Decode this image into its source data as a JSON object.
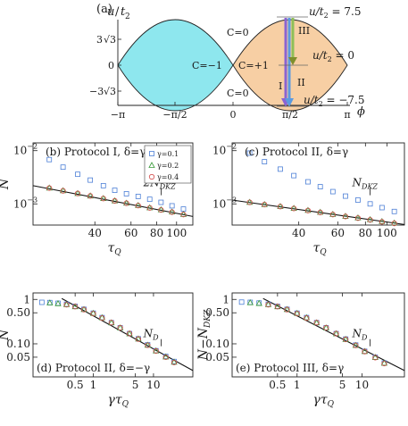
{
  "figure": {
    "panel_a": {
      "label": "(a)",
      "ylabel_u": "u",
      "ylabel_slash": "/",
      "ylabel_t": "t",
      "ylabel_sub": "2",
      "ytick_pos_coef": "3",
      "ytick_pos_root": "3",
      "ytick_zero": "0",
      "ytick_neg_prefix": "−3",
      "ytick_neg_root": "3",
      "xticks": [
        "−π",
        "−π/2",
        "0",
        "π/2",
        "π"
      ],
      "xlabel": "ϕ",
      "region_labels": {
        "top_right": "C=0",
        "left_lobe": "C=−1",
        "right_lobe": "C=+1",
        "bottom_right": "C=0"
      },
      "protocol_labels": {
        "p1": "I",
        "p2": "II",
        "p3": "III"
      },
      "u_levels": {
        "top": {
          "lhs": "u/t",
          "sub": "2",
          "rhs": " = 7.5"
        },
        "mid": {
          "lhs": "u/t",
          "sub": "2",
          "rhs": " = 0"
        },
        "bottom": {
          "lhs": "u/t",
          "sub": "2",
          "rhs": " = −7.5"
        }
      },
      "colors": {
        "left_lobe": "#8ee7ee",
        "right_lobe": "#f7cfa4",
        "arrow_purple": "#8a63d2",
        "arrow_blue": "#5b9ae0",
        "arrow_green": "#8fbf57",
        "arrow_olive": "#7f8f2c"
      }
    },
    "panels": [
      {
        "id": "b",
        "title": "(b) Protocol I, δ=γ",
        "ylabel": "N",
        "xlabel_main": "τ",
        "xlabel_sub": "Q",
        "annotation_main": "2N",
        "annotation_sub": "DKZ",
        "yticks": [
          "10",
          "10"
        ],
        "yticks_exp": [
          "−2",
          "−3"
        ],
        "xticks": [
          "40",
          "60",
          "80",
          "100"
        ],
        "legend": [
          {
            "label": "γ=0.1",
            "marker": "square",
            "color": "#4c7fd6"
          },
          {
            "label": "γ=0.2",
            "marker": "triangle",
            "color": "#3a9a3a"
          },
          {
            "label": "γ=0.4",
            "marker": "circle",
            "color": "#d24a4a"
          }
        ]
      },
      {
        "id": "c",
        "title": "(c) Protocol II, δ=γ",
        "ylabel": "",
        "xlabel_main": "τ",
        "xlabel_sub": "Q",
        "annotation_main": "N",
        "annotation_sub": "DKZ",
        "yticks": [
          "10",
          "10"
        ],
        "yticks_exp": [
          "−2",
          "−3"
        ],
        "xticks": [
          "40",
          "60",
          "80",
          "100"
        ]
      },
      {
        "id": "d",
        "title": "(d) Protocol II, δ=−γ",
        "ylabel": "N",
        "xlabel_main": "γτ",
        "xlabel_sub": "Q",
        "annotation_main": "N",
        "annotation_sub": "D",
        "yticks": [
          "1",
          "0.50",
          "0.10",
          "0.05"
        ],
        "xticks": [
          "0.5",
          "1",
          "5",
          "10"
        ]
      },
      {
        "id": "e",
        "title": "(e) Protocol III, δ=γ",
        "ylabel": "N−N",
        "ylabel_sub": "DKZ",
        "xlabel_main": "γτ",
        "xlabel_sub": "Q",
        "annotation_main": "N",
        "annotation_sub": "D",
        "yticks": [
          "1",
          "0.50",
          "0.10",
          "0.05"
        ],
        "xticks": [
          "0.5",
          "1",
          "5",
          "10"
        ]
      }
    ]
  },
  "chart_data": [
    {
      "type": "scatter",
      "title": "(b) Protocol I, δ=γ",
      "xlabel": "τQ",
      "ylabel": "N",
      "xscale": "log",
      "yscale": "log",
      "xlim": [
        20,
        120
      ],
      "ylim": [
        0.0004,
        0.014
      ],
      "series": [
        {
          "name": "γ=0.1",
          "marker": "square",
          "x": [
            24,
            28,
            33,
            38,
            44,
            50,
            57,
            65,
            74,
            84,
            95,
            108
          ],
          "y": [
            0.0068,
            0.0049,
            0.0036,
            0.0028,
            0.0022,
            0.0018,
            0.00155,
            0.00138,
            0.00122,
            0.00107,
            0.00092,
            0.0008
          ]
        },
        {
          "name": "γ=0.2",
          "marker": "triangle",
          "x": [
            24,
            28,
            33,
            38,
            44,
            50,
            57,
            65,
            74,
            84,
            95,
            108
          ],
          "y": [
            0.002,
            0.00178,
            0.00158,
            0.00142,
            0.00127,
            0.00115,
            0.00104,
            0.00094,
            0.00085,
            0.00078,
            0.00071,
            0.00064
          ]
        },
        {
          "name": "γ=0.4",
          "marker": "circle",
          "x": [
            24,
            28,
            33,
            38,
            44,
            50,
            57,
            65,
            74,
            84,
            95,
            108
          ],
          "y": [
            0.00198,
            0.00176,
            0.00157,
            0.00141,
            0.00126,
            0.00114,
            0.00103,
            0.00093,
            0.00084,
            0.00077,
            0.0007,
            0.00063
          ]
        }
      ],
      "reference_line": {
        "label": "2N_DKZ",
        "x": [
          20,
          120
        ],
        "y": [
          0.0022,
          0.00058
        ]
      }
    },
    {
      "type": "scatter",
      "title": "(c) Protocol II, δ=γ",
      "xlabel": "τQ",
      "ylabel": "",
      "xscale": "log",
      "yscale": "log",
      "xlim": [
        20,
        120
      ],
      "ylim": [
        0.0004,
        0.014
      ],
      "series": [
        {
          "name": "γ=0.1",
          "marker": "square",
          "x": [
            24,
            28,
            33,
            38,
            44,
            50,
            57,
            65,
            74,
            84,
            95,
            108
          ],
          "y": [
            0.009,
            0.0062,
            0.0045,
            0.0034,
            0.0026,
            0.0021,
            0.0017,
            0.0014,
            0.00118,
            0.001,
            0.00085,
            0.00072
          ]
        },
        {
          "name": "γ=0.2",
          "marker": "triangle",
          "x": [
            24,
            28,
            33,
            38,
            44,
            50,
            57,
            65,
            74,
            84,
            95,
            108
          ],
          "y": [
            0.00108,
            0.00098,
            0.0009,
            0.00083,
            0.00076,
            0.0007,
            0.00064,
            0.00059,
            0.00055,
            0.00051,
            0.00047,
            0.00044
          ]
        },
        {
          "name": "γ=0.4",
          "marker": "circle",
          "x": [
            24,
            28,
            33,
            38,
            44,
            50,
            57,
            65,
            74,
            84,
            95,
            108
          ],
          "y": [
            0.00107,
            0.00097,
            0.00089,
            0.00082,
            0.00075,
            0.00069,
            0.00063,
            0.00058,
            0.00054,
            0.0005,
            0.00046,
            0.00043
          ]
        }
      ],
      "reference_line": {
        "label": "N_DKZ",
        "x": [
          20,
          120
        ],
        "y": [
          0.00118,
          0.00041
        ]
      }
    },
    {
      "type": "scatter",
      "title": "(d) Protocol II, δ=−γ",
      "xlabel": "γτQ",
      "ylabel": "N",
      "xscale": "log",
      "yscale": "log",
      "xlim": [
        0.1,
        45
      ],
      "ylim": [
        0.018,
        1.4
      ],
      "series": [
        {
          "name": "γ=0.1",
          "marker": "square",
          "x": [
            0.14,
            0.19,
            0.26,
            0.36,
            0.5,
            0.7,
            1.0,
            1.4,
            2.0,
            2.8,
            4.0,
            5.6,
            8.0,
            11.0,
            16.0,
            22.0
          ],
          "y": [
            0.86,
            0.85,
            0.82,
            0.78,
            0.7,
            0.6,
            0.49,
            0.39,
            0.3,
            0.23,
            0.17,
            0.13,
            0.095,
            0.07,
            0.052,
            0.04
          ]
        },
        {
          "name": "γ=0.2",
          "marker": "triangle",
          "x": [
            0.19,
            0.26,
            0.36,
            0.5,
            0.7,
            1.0,
            1.4,
            2.0,
            2.8,
            4.0,
            5.6,
            8.0,
            11.0,
            16.0,
            22.0
          ],
          "y": [
            0.84,
            0.81,
            0.77,
            0.69,
            0.6,
            0.49,
            0.39,
            0.3,
            0.23,
            0.17,
            0.13,
            0.094,
            0.07,
            0.051,
            0.039
          ]
        },
        {
          "name": "γ=0.4",
          "marker": "circle",
          "x": [
            0.36,
            0.5,
            0.7,
            1.0,
            1.4,
            2.0,
            2.8,
            4.0,
            5.6,
            8.0,
            11.0,
            16.0,
            22.0
          ],
          "y": [
            0.76,
            0.69,
            0.59,
            0.48,
            0.38,
            0.3,
            0.23,
            0.17,
            0.128,
            0.093,
            0.069,
            0.05,
            0.038
          ]
        }
      ],
      "reference_line": {
        "label": "N_D",
        "x": [
          0.3,
          45
        ],
        "y": [
          1.05,
          0.025
        ]
      }
    },
    {
      "type": "scatter",
      "title": "(e) Protocol III, δ=γ",
      "xlabel": "γτQ",
      "ylabel": "N−N_DKZ",
      "xscale": "log",
      "yscale": "log",
      "xlim": [
        0.1,
        45
      ],
      "ylim": [
        0.018,
        1.4
      ],
      "series": [
        {
          "name": "γ=0.1",
          "marker": "square",
          "x": [
            0.14,
            0.19,
            0.26,
            0.36,
            0.5,
            0.7,
            1.0,
            1.4,
            2.0,
            2.8,
            4.0,
            5.6,
            8.0,
            11.0,
            16.0,
            22.0
          ],
          "y": [
            0.87,
            0.86,
            0.83,
            0.78,
            0.7,
            0.6,
            0.49,
            0.39,
            0.3,
            0.23,
            0.17,
            0.128,
            0.094,
            0.068,
            0.05,
            0.037
          ]
        },
        {
          "name": "γ=0.2",
          "marker": "triangle",
          "x": [
            0.19,
            0.26,
            0.36,
            0.5,
            0.7,
            1.0,
            1.4,
            2.0,
            2.8,
            4.0,
            5.6,
            8.0,
            11.0,
            16.0,
            22.0
          ],
          "y": [
            0.85,
            0.82,
            0.77,
            0.69,
            0.6,
            0.49,
            0.39,
            0.3,
            0.23,
            0.17,
            0.127,
            0.093,
            0.068,
            0.05,
            0.037
          ]
        },
        {
          "name": "γ=0.4",
          "marker": "circle",
          "x": [
            0.36,
            0.5,
            0.7,
            1.0,
            1.4,
            2.0,
            2.8,
            4.0,
            5.6,
            8.0,
            11.0,
            16.0,
            22.0
          ],
          "y": [
            0.76,
            0.69,
            0.59,
            0.48,
            0.38,
            0.3,
            0.23,
            0.17,
            0.126,
            0.092,
            0.067,
            0.049,
            0.036
          ]
        }
      ],
      "reference_line": {
        "label": "N_D",
        "x": [
          0.3,
          45
        ],
        "y": [
          1.05,
          0.025
        ]
      }
    }
  ]
}
